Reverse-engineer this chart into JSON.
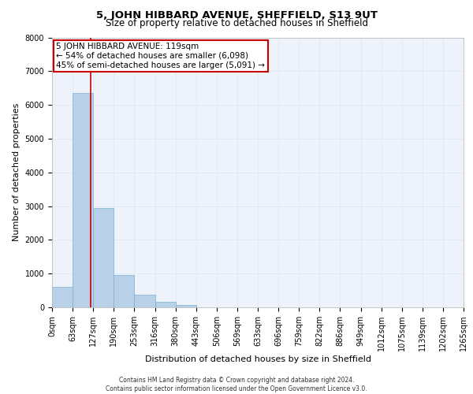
{
  "title": "5, JOHN HIBBARD AVENUE, SHEFFIELD, S13 9UT",
  "subtitle": "Size of property relative to detached houses in Sheffield",
  "xlabel": "Distribution of detached houses by size in Sheffield",
  "ylabel": "Number of detached properties",
  "footer_line1": "Contains HM Land Registry data © Crown copyright and database right 2024.",
  "footer_line2": "Contains public sector information licensed under the Open Government Licence v3.0.",
  "annotation_line1": "5 JOHN HIBBARD AVENUE: 119sqm",
  "annotation_line2": "← 54% of detached houses are smaller (6,098)",
  "annotation_line3": "45% of semi-detached houses are larger (5,091) →",
  "bar_values": [
    600,
    6350,
    2950,
    960,
    370,
    155,
    80,
    0,
    0,
    0,
    0,
    0,
    0,
    0,
    0,
    0,
    0,
    0,
    0,
    0
  ],
  "bar_color": "#b8d0e8",
  "bar_edge_color": "#7aafd4",
  "grid_color": "#dce9f5",
  "background_color": "#eef3fb",
  "vline_color": "#cc0000",
  "annotation_box_edgecolor": "#cc0000",
  "ylim": [
    0,
    8000
  ],
  "yticks": [
    0,
    1000,
    2000,
    3000,
    4000,
    5000,
    6000,
    7000,
    8000
  ],
  "x_labels": [
    "0sqm",
    "63sqm",
    "127sqm",
    "190sqm",
    "253sqm",
    "316sqm",
    "380sqm",
    "443sqm",
    "506sqm",
    "569sqm",
    "633sqm",
    "696sqm",
    "759sqm",
    "822sqm",
    "886sqm",
    "949sqm",
    "1012sqm",
    "1075sqm",
    "1139sqm",
    "1202sqm",
    "1265sqm"
  ],
  "title_fontsize": 9.5,
  "subtitle_fontsize": 8.5,
  "xlabel_fontsize": 8,
  "ylabel_fontsize": 8,
  "tick_fontsize": 7,
  "annotation_fontsize": 7.5,
  "footer_fontsize": 5.5
}
